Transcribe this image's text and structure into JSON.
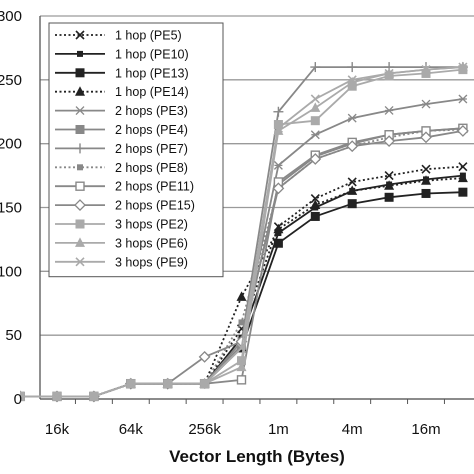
{
  "chart_data": {
    "type": "line",
    "title": "",
    "xlabel": "Vector Length (Bytes)",
    "ylabel": "",
    "x": [
      "8k",
      "16k",
      "32k",
      "64k",
      "128k",
      "256k",
      "512k",
      "1m",
      "2m",
      "4m",
      "8m",
      "16m",
      "32m"
    ],
    "x_tick_labels": [
      "16k",
      "64k",
      "256k",
      "1m",
      "4m",
      "16m"
    ],
    "y_tick_labels": [
      "0",
      "50",
      "100",
      "150",
      "200",
      "250",
      "300"
    ],
    "ylim": [
      0,
      300
    ],
    "grid": "horizontal",
    "legend_position": "top-left",
    "series": [
      {
        "name": "1 hop (PE5)",
        "color": "#222222",
        "dash": "dotted",
        "marker": "x",
        "values": [
          2,
          2,
          2,
          12,
          12,
          12,
          55,
          135,
          157,
          170,
          175,
          180,
          182
        ]
      },
      {
        "name": "1 hop (PE10)",
        "color": "#222222",
        "dash": "solid",
        "marker": "square-small",
        "values": [
          2,
          2,
          2,
          12,
          12,
          12,
          48,
          130,
          150,
          163,
          168,
          172,
          175
        ]
      },
      {
        "name": "1 hop (PE13)",
        "color": "#222222",
        "dash": "solid",
        "marker": "square",
        "values": [
          2,
          2,
          2,
          12,
          12,
          12,
          40,
          122,
          143,
          153,
          158,
          161,
          162
        ]
      },
      {
        "name": "1 hop (PE14)",
        "color": "#222222",
        "dash": "dotted",
        "marker": "triangle",
        "values": [
          2,
          2,
          2,
          12,
          12,
          12,
          80,
          133,
          152,
          163,
          167,
          171,
          173
        ]
      },
      {
        "name": "2 hops (PE3)",
        "color": "#888888",
        "dash": "solid",
        "marker": "star",
        "values": [
          2,
          2,
          2,
          12,
          12,
          12,
          45,
          183,
          207,
          220,
          226,
          231,
          235
        ]
      },
      {
        "name": "2 hops (PE4)",
        "color": "#888888",
        "dash": "solid",
        "marker": "square",
        "values": [
          2,
          2,
          2,
          12,
          12,
          12,
          42,
          168,
          190,
          200,
          207,
          210,
          212
        ]
      },
      {
        "name": "2 hops (PE7)",
        "color": "#888888",
        "dash": "solid",
        "marker": "plus",
        "values": [
          2,
          2,
          2,
          12,
          12,
          12,
          45,
          225,
          260,
          260,
          260,
          260,
          260
        ]
      },
      {
        "name": "2 hops (PE8)",
        "color": "#888888",
        "dash": "dotted",
        "marker": "square-small",
        "values": [
          2,
          2,
          2,
          12,
          12,
          12,
          60,
          165,
          188,
          198,
          205,
          210,
          211
        ]
      },
      {
        "name": "2 hops (PE11)",
        "color": "#888888",
        "dash": "solid",
        "marker": "square-open",
        "values": [
          2,
          2,
          2,
          12,
          12,
          12,
          15,
          170,
          191,
          201,
          207,
          210,
          212
        ]
      },
      {
        "name": "2 hops (PE15)",
        "color": "#888888",
        "dash": "solid",
        "marker": "diamond-open",
        "values": [
          2,
          2,
          2,
          12,
          12,
          33,
          45,
          165,
          188,
          198,
          202,
          205,
          210
        ]
      },
      {
        "name": "3 hops (PE2)",
        "color": "#aaaaaa",
        "dash": "solid",
        "marker": "square",
        "values": [
          2,
          2,
          2,
          12,
          12,
          12,
          30,
          215,
          218,
          245,
          253,
          255,
          258
        ]
      },
      {
        "name": "3 hops (PE6)",
        "color": "#aaaaaa",
        "dash": "solid",
        "marker": "triangle",
        "values": [
          2,
          2,
          2,
          12,
          12,
          12,
          25,
          210,
          228,
          248,
          255,
          258,
          260
        ]
      },
      {
        "name": "3 hops (PE9)",
        "color": "#aaaaaa",
        "dash": "solid",
        "marker": "x",
        "values": [
          2,
          2,
          2,
          12,
          12,
          12,
          40,
          212,
          235,
          250,
          255,
          258,
          260
        ]
      }
    ]
  }
}
